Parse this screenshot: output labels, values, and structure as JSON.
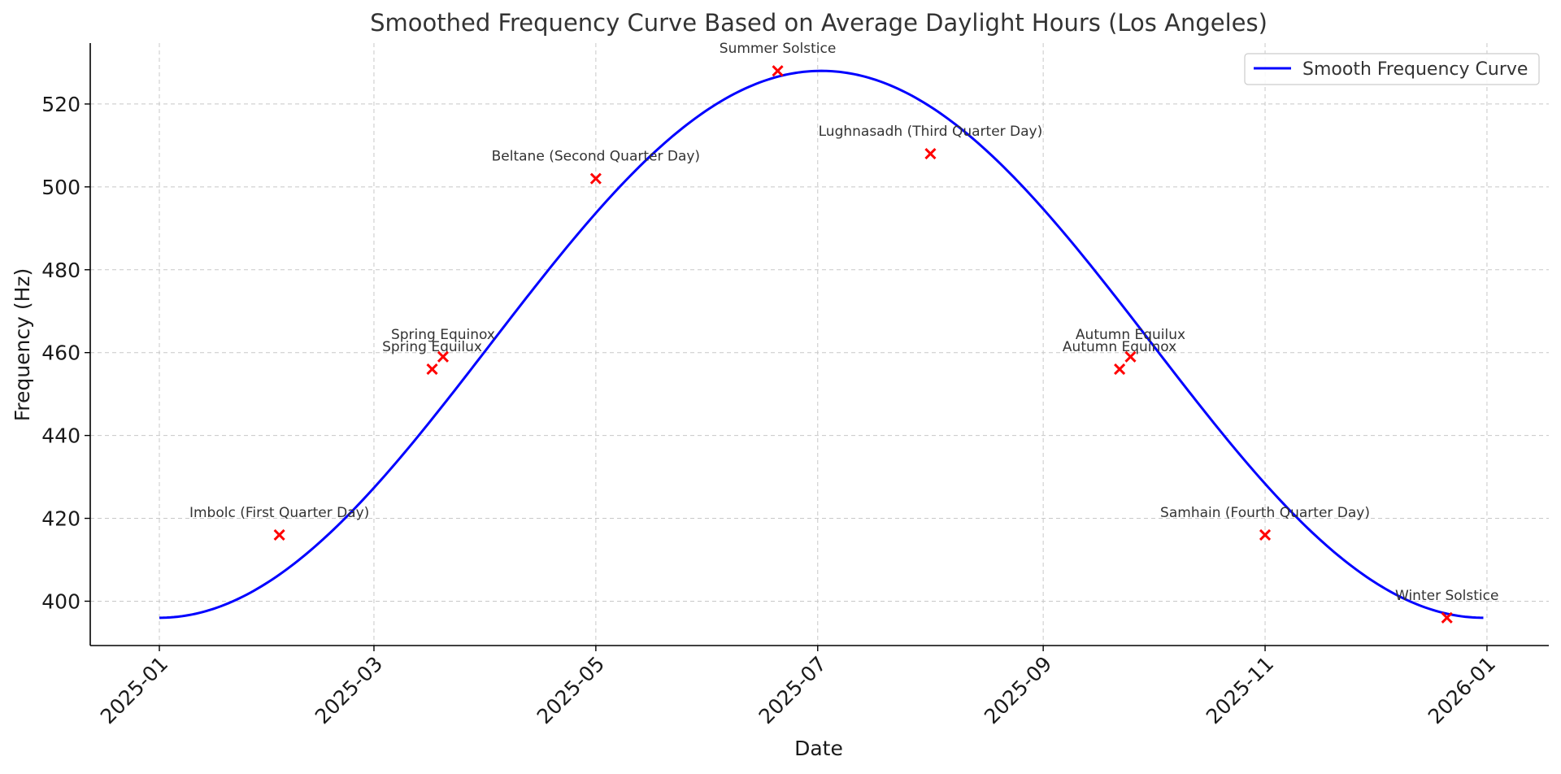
{
  "chart_data": {
    "type": "line",
    "title": "Smoothed Frequency Curve Based on Average Daylight Hours (Los Angeles)",
    "xlabel": "Date",
    "ylabel": "Frequency (Hz)",
    "xlim": [
      "2024-12-13",
      "2026-01-18"
    ],
    "ylim": [
      389.3,
      534.7
    ],
    "x_ticks": [
      "2025-01",
      "2025-03",
      "2025-05",
      "2025-07",
      "2025-09",
      "2025-11",
      "2026-01"
    ],
    "y_ticks": [
      400,
      420,
      440,
      460,
      480,
      500,
      520
    ],
    "grid": true,
    "legend_position": "top-right",
    "series": [
      {
        "name": "Smooth Frequency Curve",
        "type": "line",
        "color": "#0000ff",
        "start": "2025-01-01",
        "end": "2025-12-31",
        "min": 396,
        "max": 528,
        "peak": "2025-07-02"
      },
      {
        "type": "scatter",
        "marker": "x",
        "color": "#ff0000",
        "points": [
          {
            "x": "2025-02-03",
            "y": 416,
            "label": "Imbolc (First Quarter Day)"
          },
          {
            "x": "2025-03-17",
            "y": 456,
            "label": "Spring Equilux"
          },
          {
            "x": "2025-03-20",
            "y": 459,
            "label": "Spring Equinox"
          },
          {
            "x": "2025-05-01",
            "y": 502,
            "label": "Beltane (Second Quarter Day)"
          },
          {
            "x": "2025-06-20",
            "y": 528,
            "label": "Summer Solstice"
          },
          {
            "x": "2025-08-01",
            "y": 508,
            "label": "Lughnasadh (Third Quarter Day)"
          },
          {
            "x": "2025-09-22",
            "y": 456,
            "label": "Autumn Equinox"
          },
          {
            "x": "2025-09-25",
            "y": 459,
            "label": "Autumn Equilux"
          },
          {
            "x": "2025-11-01",
            "y": 416,
            "label": "Samhain (Fourth Quarter Day)"
          },
          {
            "x": "2025-12-21",
            "y": 396,
            "label": "Winter Solstice"
          }
        ]
      }
    ]
  }
}
